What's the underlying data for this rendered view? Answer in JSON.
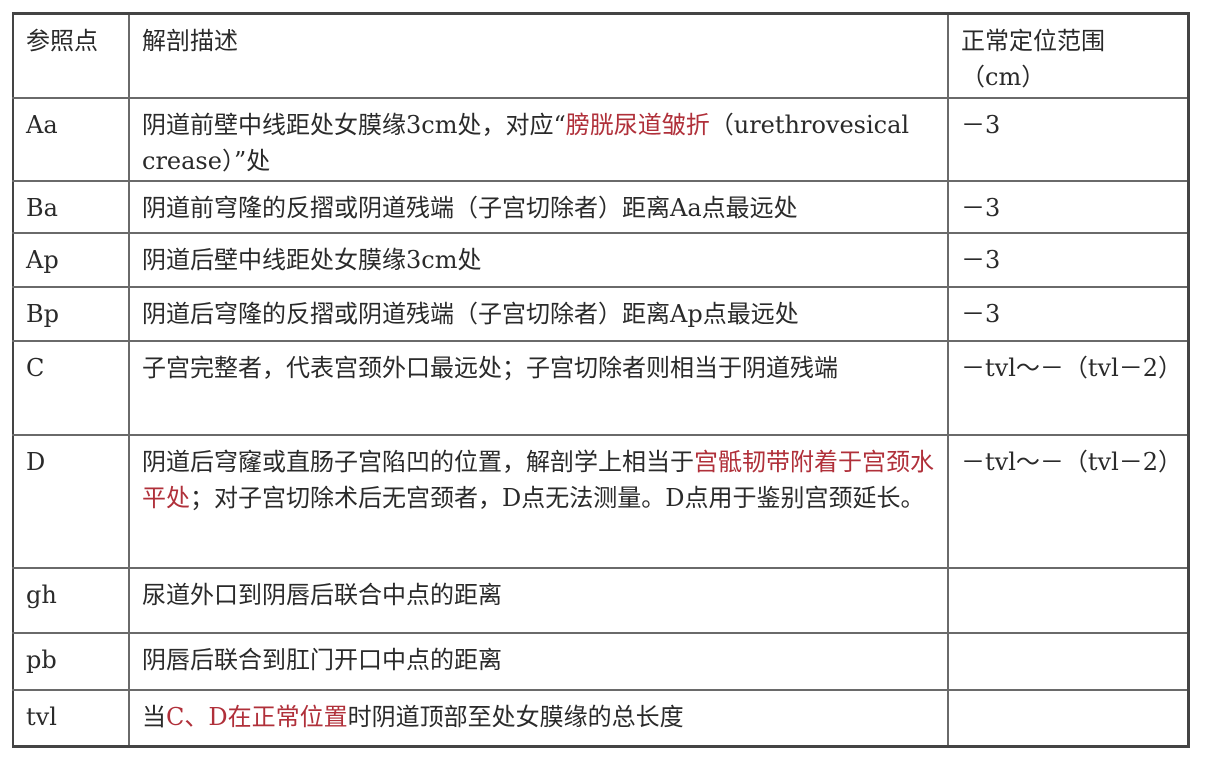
{
  "table": {
    "headers": [
      "参照点",
      "解剖描述",
      "正常定位范围（cm）"
    ],
    "accent_color": "#b0303a",
    "rows": [
      {
        "point": "Aa",
        "desc": [
          {
            "text": "阴道前壁中线距处女膜缘3cm处，对应“",
            "red": false
          },
          {
            "text": "膀胱尿道皱折",
            "red": true
          },
          {
            "text": "（urethrovesical crease）”处",
            "red": false
          }
        ],
        "range": "－3"
      },
      {
        "point": "Ba",
        "desc": [
          {
            "text": "阴道前穹隆的反摺或阴道残端（子宫切除者）距离Aa点最远处",
            "red": false
          }
        ],
        "range": "－3"
      },
      {
        "point": "Ap",
        "desc": [
          {
            "text": "阴道后壁中线距处女膜缘3cm处",
            "red": false
          }
        ],
        "range": "－3"
      },
      {
        "point": "Bp",
        "desc": [
          {
            "text": "阴道后穹隆的反摺或阴道残端（子宫切除者）距离Ap点最远处",
            "red": false
          }
        ],
        "range": "－3"
      },
      {
        "point": "C",
        "desc": [
          {
            "text": "子宫完整者，代表宫颈外口最远处；子宫切除者则相当于阴道残端",
            "red": false
          }
        ],
        "range": "－tvl～－（tvl－2）"
      },
      {
        "point": "D",
        "desc": [
          {
            "text": "阴道后穹窿或直肠子宫陷凹的位置，解剖学上相当于",
            "red": false
          },
          {
            "text": "宫骶韧带附着于宫颈水平处",
            "red": true
          },
          {
            "text": "；对子宫切除术后无宫颈者，D点无法测量。D点用于鉴别宫颈延长。",
            "red": false
          }
        ],
        "range": "－tvl～－（tvl－2）"
      },
      {
        "point": "gh",
        "desc": [
          {
            "text": "尿道外口到阴唇后联合中点的距离",
            "red": false
          }
        ],
        "range": ""
      },
      {
        "point": "pb",
        "desc": [
          {
            "text": "阴唇后联合到肛门开口中点的距离",
            "red": false
          }
        ],
        "range": ""
      },
      {
        "point": "tvl",
        "desc": [
          {
            "text": "当",
            "red": false
          },
          {
            "text": "C、D在正常位置",
            "red": true
          },
          {
            "text": "时阴道顶部至处女膜缘的总长度",
            "red": false
          }
        ],
        "range": ""
      }
    ]
  }
}
